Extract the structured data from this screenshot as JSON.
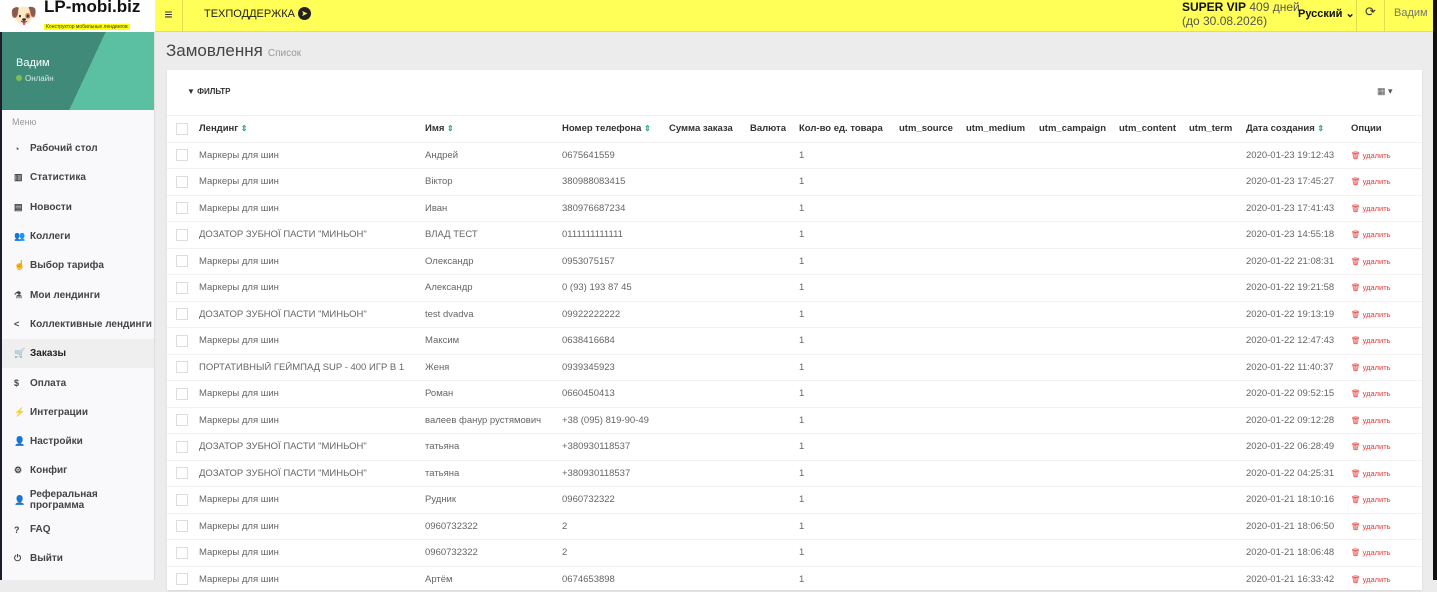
{
  "topbar": {
    "brand": "LP-mobi.biz",
    "brand_tagline": "Конструктор мобильных лендингов",
    "support": "ТЕХПОДДЕРЖКА",
    "plan": "SUPER VIP",
    "plan_days": "409 дней",
    "plan_until": "(до 30.08.2026)",
    "language": "Русский",
    "user": "Вадим"
  },
  "sidebar": {
    "user": "Вадим",
    "status": "Онлайн",
    "menu_label": "Меню",
    "items": [
      {
        "label": "Рабочий стол",
        "icon": "dashboard-icon",
        "glyph": "◔"
      },
      {
        "label": "Статистика",
        "icon": "bar-chart-icon",
        "glyph": "▥"
      },
      {
        "label": "Новости",
        "icon": "newspaper-icon",
        "glyph": "▤"
      },
      {
        "label": "Коллеги",
        "icon": "users-icon",
        "glyph": "👥"
      },
      {
        "label": "Выбор тарифа",
        "icon": "hand-pointer-icon",
        "glyph": "☝"
      },
      {
        "label": "Мои лендинги",
        "icon": "flask-icon",
        "glyph": "⚗"
      },
      {
        "label": "Коллективные лендинги",
        "icon": "share-icon",
        "glyph": "<"
      },
      {
        "label": "Заказы",
        "icon": "cart-icon",
        "glyph": "🛒"
      },
      {
        "label": "Оплата",
        "icon": "dollar-icon",
        "glyph": "$"
      },
      {
        "label": "Интеграции",
        "icon": "plug-icon",
        "glyph": "⚡"
      },
      {
        "label": "Настройки",
        "icon": "user-icon",
        "glyph": "👤"
      },
      {
        "label": "Конфиг",
        "icon": "gears-icon",
        "glyph": "⚙"
      },
      {
        "label": "Реферальная программа",
        "icon": "user-plus-icon",
        "glyph": "👤"
      },
      {
        "label": "FAQ",
        "icon": "question-icon",
        "glyph": "?"
      },
      {
        "label": "Выйти",
        "icon": "power-icon",
        "glyph": "⏻"
      }
    ],
    "active_index": 7
  },
  "page": {
    "title": "Замовлення",
    "subtitle": "Список",
    "filter": "ФИЛЬТР"
  },
  "table": {
    "headers": [
      "Лендинг",
      "Имя",
      "Номер телефона",
      "Сумма заказа",
      "Валюта",
      "Кол-во ед. товара",
      "utm_source",
      "utm_medium",
      "utm_campaign",
      "utm_content",
      "utm_term",
      "Дата создания",
      "Опции"
    ],
    "sortable": [
      true,
      true,
      true,
      false,
      false,
      false,
      false,
      false,
      false,
      false,
      false,
      true,
      false
    ],
    "delete_label": "удалить",
    "rows": [
      [
        "Маркеры для шин",
        "Андрей",
        "0675641559",
        "",
        "",
        "1",
        "",
        "",
        "",
        "",
        "",
        "2020-01-23 19:12:43"
      ],
      [
        "Маркеры для шин",
        "Віктор",
        "380988083415",
        "",
        "",
        "1",
        "",
        "",
        "",
        "",
        "",
        "2020-01-23 17:45:27"
      ],
      [
        "Маркеры для шин",
        "Иван",
        "380976687234",
        "",
        "",
        "1",
        "",
        "",
        "",
        "",
        "",
        "2020-01-23 17:41:43"
      ],
      [
        "ДОЗАТОР ЗУБНОЇ ПАСТИ \"МИНЬОН\"",
        "ВЛАД ТЕСТ",
        "0111111111111",
        "",
        "",
        "1",
        "",
        "",
        "",
        "",
        "",
        "2020-01-23 14:55:18"
      ],
      [
        "Маркеры для шин",
        "Олександр",
        "0953075157",
        "",
        "",
        "1",
        "",
        "",
        "",
        "",
        "",
        "2020-01-22 21:08:31"
      ],
      [
        "Маркеры для шин",
        "Александр",
        "0 (93) 193 87 45",
        "",
        "",
        "1",
        "",
        "",
        "",
        "",
        "",
        "2020-01-22 19:21:58"
      ],
      [
        "ДОЗАТОР ЗУБНОЇ ПАСТИ \"МИНЬОН\"",
        "test dvadva",
        "09922222222",
        "",
        "",
        "1",
        "",
        "",
        "",
        "",
        "",
        "2020-01-22 19:13:19"
      ],
      [
        "Маркеры для шин",
        "Максим",
        "0638416684",
        "",
        "",
        "1",
        "",
        "",
        "",
        "",
        "",
        "2020-01-22 12:47:43"
      ],
      [
        "ПОРТАТИВНЫЙ ГЕЙМПАД SUP - 400 ИГР В 1",
        "Женя",
        "0939345923",
        "",
        "",
        "1",
        "",
        "",
        "",
        "",
        "",
        "2020-01-22 11:40:37"
      ],
      [
        "Маркеры для шин",
        "Роман",
        "0660450413",
        "",
        "",
        "1",
        "",
        "",
        "",
        "",
        "",
        "2020-01-22 09:52:15"
      ],
      [
        "Маркеры для шин",
        "валеев фанур рустямович",
        "+38 (095) 819-90-49",
        "",
        "",
        "1",
        "",
        "",
        "",
        "",
        "",
        "2020-01-22 09:12:28"
      ],
      [
        "ДОЗАТОР ЗУБНОЇ ПАСТИ \"МИНЬОН\"",
        "татьяна",
        "+380930118537",
        "",
        "",
        "1",
        "",
        "",
        "",
        "",
        "",
        "2020-01-22 06:28:49"
      ],
      [
        "ДОЗАТОР ЗУБНОЇ ПАСТИ \"МИНЬОН\"",
        "татьяна",
        "+380930118537",
        "",
        "",
        "1",
        "",
        "",
        "",
        "",
        "",
        "2020-01-22 04:25:31"
      ],
      [
        "Маркеры для шин",
        "Рудник",
        "0960732322",
        "",
        "",
        "1",
        "",
        "",
        "",
        "",
        "",
        "2020-01-21 18:10:16"
      ],
      [
        "Маркеры для шин",
        "0960732322",
        "2",
        "",
        "",
        "1",
        "",
        "",
        "",
        "",
        "",
        "2020-01-21 18:06:50"
      ],
      [
        "Маркеры для шин",
        "0960732322",
        "2",
        "",
        "",
        "1",
        "",
        "",
        "",
        "",
        "",
        "2020-01-21 18:06:48"
      ],
      [
        "Маркеры для шин",
        "Артём",
        "0674653898",
        "",
        "",
        "1",
        "",
        "",
        "",
        "",
        "",
        "2020-01-21 16:33:42"
      ]
    ]
  },
  "colors": {
    "topbar": "#ffff57",
    "sidebar_header": "#3f8a78",
    "sort_icon": "#2aa58a",
    "delete": "#e53935"
  }
}
